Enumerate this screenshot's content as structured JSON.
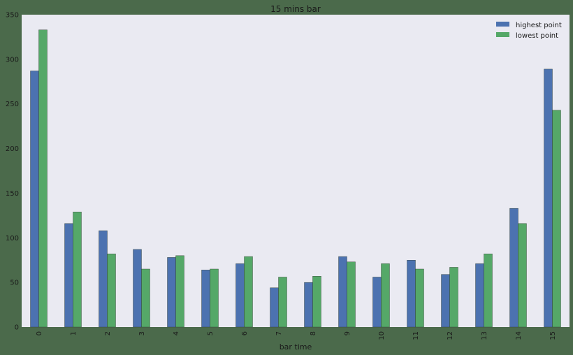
{
  "colors": {
    "figure_background": "#4b6a4b",
    "plot_background": "#eaeaf2",
    "series_highest": "#4c72b0",
    "series_lowest": "#55a868"
  },
  "chart_data": {
    "type": "bar",
    "title": "15 mins bar",
    "xlabel": "bar time",
    "ylabel": "",
    "categories": [
      "0",
      "1",
      "2",
      "3",
      "4",
      "5",
      "6",
      "7",
      "8",
      "9",
      "10",
      "11",
      "12",
      "13",
      "14",
      "15"
    ],
    "series": [
      {
        "name": "highest point",
        "values": [
          287,
          116,
          108,
          87,
          78,
          64,
          71,
          44,
          50,
          79,
          56,
          75,
          59,
          71,
          133,
          289
        ]
      },
      {
        "name": "lowest point",
        "values": [
          333,
          129,
          82,
          65,
          80,
          65,
          79,
          56,
          57,
          73,
          71,
          65,
          67,
          82,
          116,
          243
        ]
      }
    ],
    "ylim": [
      0,
      350
    ],
    "yticks": [
      0,
      50,
      100,
      150,
      200,
      250,
      300,
      350
    ],
    "grid": false,
    "legend_position": "top-right"
  }
}
